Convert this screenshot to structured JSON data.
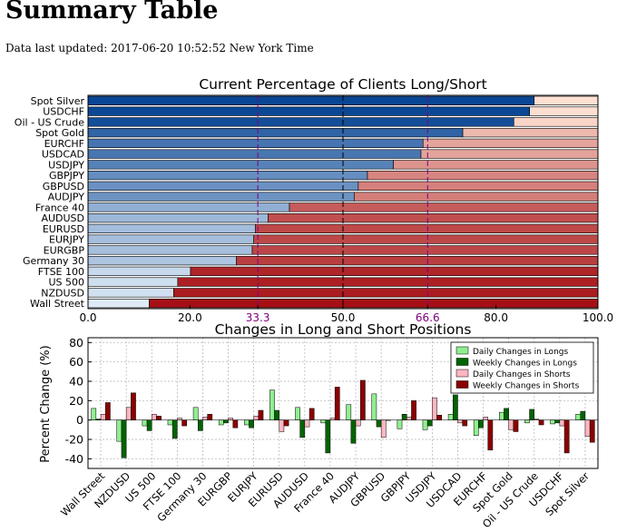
{
  "page": {
    "heading": "Summary Table",
    "updated": "Data last updated: 2017-06-20 10:52:52 New York Time"
  },
  "chart_data": [
    {
      "type": "bar",
      "orientation": "horizontal-stacked",
      "title": "Current Percentage of Clients Long/Short",
      "categories": [
        "Spot Silver",
        "USDCHF",
        "Oil - US Crude",
        "Spot Gold",
        "EURCHF",
        "USDCAD",
        "USDJPY",
        "GBPJPY",
        "GBPUSD",
        "AUDJPY",
        "France 40",
        "AUDUSD",
        "EURUSD",
        "EURJPY",
        "EURGBP",
        "Germany 30",
        "FTSE 100",
        "US 500",
        "NZDUSD",
        "Wall Street"
      ],
      "long": [
        87.5,
        86.6,
        83.5,
        73.5,
        65.7,
        65.3,
        59.9,
        54.8,
        53.0,
        52.2,
        39.5,
        35.3,
        32.8,
        32.5,
        32.2,
        29.1,
        20.1,
        17.6,
        16.8,
        12.0
      ],
      "xlim": [
        0,
        100
      ],
      "xticks": [
        "0.0",
        "20.0",
        "33.3",
        "50.0",
        "66.6",
        "80.0",
        "100.0"
      ],
      "reference_lines": [
        33.3,
        50.0,
        66.6
      ],
      "colors": {
        "long": "#2070b4",
        "short": "#e6352f",
        "reference_outer": "#800080",
        "reference_mid": "#000000"
      }
    },
    {
      "type": "bar",
      "title": "Changes in Long and Short Positions",
      "ylabel": "Percent Change (%)",
      "ylim": [
        -50,
        85
      ],
      "yticks": [
        -40,
        -20,
        0,
        20,
        40,
        60,
        80
      ],
      "categories": [
        "Wall Street",
        "NZDUSD",
        "US 500",
        "FTSE 100",
        "Germany 30",
        "EURGBP",
        "EURJPY",
        "EURUSD",
        "AUDUSD",
        "France 40",
        "AUDJPY",
        "GBPUSD",
        "GBPJPY",
        "USDJPY",
        "USDCAD",
        "EURCHF",
        "Spot Gold",
        "Oil - US Crude",
        "USDCHF",
        "Spot Silver"
      ],
      "series": [
        {
          "name": "Daily Changes in Longs",
          "color": "#90ee90",
          "values": [
            12,
            -22,
            -6,
            -5,
            13,
            -5,
            -5,
            31,
            13,
            -3,
            16,
            27,
            -9,
            -10,
            6,
            -16,
            8,
            -3,
            -4,
            6
          ]
        },
        {
          "name": "Weekly Changes in Longs",
          "color": "#006400",
          "values": [
            1,
            -39,
            -11,
            -19,
            -11,
            -3,
            -8,
            10,
            -18,
            -34,
            -24,
            -7,
            6,
            -6,
            26,
            -8,
            12,
            11,
            -3,
            9
          ]
        },
        {
          "name": "Daily Changes in Shorts",
          "color": "#ffb6c1",
          "values": [
            6,
            13,
            6,
            2,
            3,
            2,
            4,
            -12,
            -7,
            2,
            -6,
            -18,
            3,
            23,
            -3,
            3,
            -10,
            1,
            -6,
            -17
          ]
        },
        {
          "name": "Weekly Changes in Shorts",
          "color": "#8b0000",
          "values": [
            18,
            28,
            4,
            -6,
            6,
            -8,
            10,
            -6,
            12,
            34,
            41,
            0,
            20,
            5,
            -6,
            -31,
            -12,
            -5,
            -34,
            -23
          ]
        }
      ],
      "legend": "top-right",
      "grid": true
    }
  ]
}
